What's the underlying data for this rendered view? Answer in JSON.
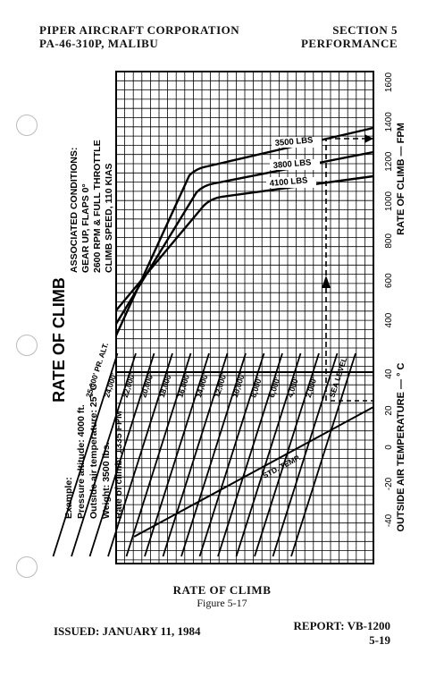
{
  "header": {
    "left_line1": "PIPER AIRCRAFT CORPORATION",
    "left_line2": "PA-46-310P, MALIBU",
    "right_line1": "SECTION 5",
    "right_line2": "PERFORMANCE"
  },
  "chart_data": {
    "type": "line",
    "title": "RATE OF CLIMB",
    "conditions": {
      "heading": "ASSOCIATED CONDITIONS:",
      "lines": [
        "GEAR UP, FLAPS 0°",
        "2600 RPM & FULL THROTTLE",
        "CLIMB SPEED, 110 KIAS"
      ]
    },
    "example": {
      "heading": "Example:",
      "lines": [
        "Pressure altitude: 4000 ft.",
        "Outside air temperature: 25° C",
        "Weight: 3500 lbs.",
        "Rate of climb: 1335 FPM"
      ]
    },
    "y_axis": {
      "label": "RATE OF CLIMB — FPM",
      "ticks": [
        "400",
        "600",
        "800",
        "1000",
        "1200",
        "1400",
        "1600"
      ],
      "lim": [
        300,
        1700
      ]
    },
    "x_axis": {
      "label": "OUTSIDE AIR TEMPERATURE — ° C",
      "ticks": [
        "-40",
        "-20",
        "0",
        "20",
        "40"
      ],
      "lim": [
        -50,
        55
      ]
    },
    "weight_series": [
      {
        "name": "3500 LBS",
        "values": [
          [
            0,
            300
          ],
          [
            7000,
            1170
          ],
          [
            25000,
            1360
          ]
        ]
      },
      {
        "name": "3800 LBS",
        "values": [
          [
            0,
            300
          ],
          [
            7000,
            1120
          ],
          [
            25000,
            1280
          ]
        ]
      },
      {
        "name": "4100 LBS",
        "values": [
          [
            0,
            300
          ],
          [
            7000,
            1075
          ],
          [
            25000,
            1210
          ]
        ]
      }
    ],
    "altitude_lines": [
      "SEA LEVEL",
      "2,000'",
      "4,000'",
      "6,000'",
      "8,000'",
      "10,000'",
      "12,000'",
      "14,000'",
      "16,000'",
      "18,000'",
      "20,000'",
      "22,000'",
      "24,000'",
      "25,000' PR. ALT."
    ],
    "std_temp_label": "STD. TEMP.",
    "example_result": 1335
  },
  "caption": {
    "title": "RATE OF CLIMB",
    "figure": "Figure 5-17"
  },
  "footer": {
    "issued": "ISSUED: JANUARY 11, 1984",
    "report": "REPORT: VB-1200",
    "page": "5-19"
  }
}
